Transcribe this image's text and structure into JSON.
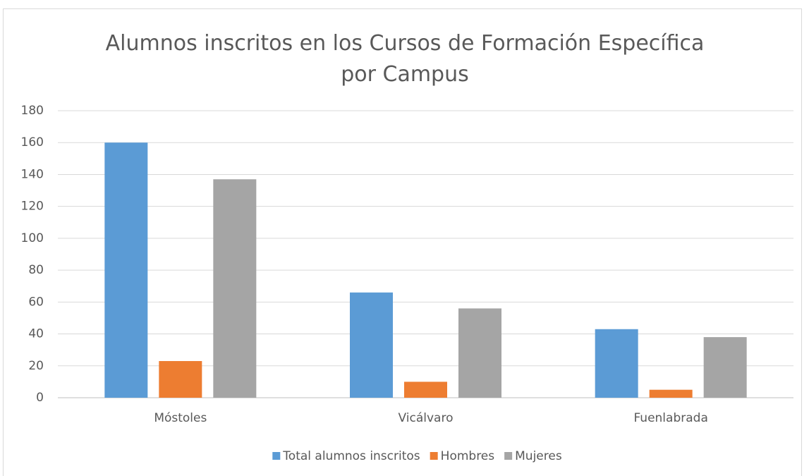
{
  "chart_data": {
    "type": "bar",
    "title": "Alumnos inscritos en los Cursos de Formación Específica por Campus",
    "categories": [
      "Móstoles",
      "Vicálvaro",
      "Fuenlabrada"
    ],
    "series": [
      {
        "name": "Total alumnos inscritos",
        "color": "#5b9bd5",
        "values": [
          160,
          66,
          43
        ]
      },
      {
        "name": "Hombres",
        "color": "#ed7d31",
        "values": [
          23,
          10,
          5
        ]
      },
      {
        "name": "Mujeres",
        "color": "#a5a5a5",
        "values": [
          137,
          56,
          38
        ]
      }
    ],
    "ylim": [
      0,
      180
    ],
    "yticks": [
      0,
      20,
      40,
      60,
      80,
      100,
      120,
      140,
      160,
      180
    ],
    "grid": true,
    "legend": "bottom"
  }
}
